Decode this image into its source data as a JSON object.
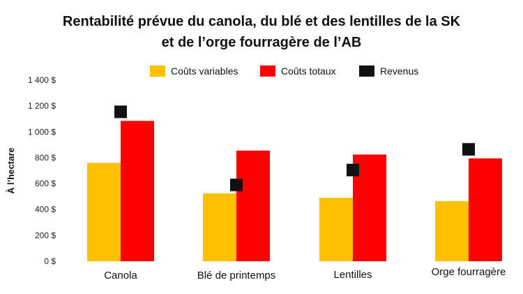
{
  "chart_data": {
    "type": "bar",
    "title_line1": "Rentabilité prévue du canola, du blé et des lentilles de la SK",
    "title_line2": "et de l’orge fourragère de l’AB",
    "ylabel": "À l’hectare",
    "ylim": [
      0,
      1400
    ],
    "yticks": [
      0,
      200,
      400,
      600,
      800,
      1000,
      1200,
      1400
    ],
    "ytick_labels": [
      "0 $",
      "200 $",
      "400 $",
      "600 $",
      "800 $",
      "1 000 $",
      "1 200 $",
      "1 400 $"
    ],
    "categories": [
      "Canola",
      "Blé de printemps",
      "Lentilles",
      "Orge fourragère"
    ],
    "series": [
      {
        "name": "Coûts variables",
        "kind": "bar",
        "color": "#FFC000",
        "values": [
          760,
          525,
          490,
          465
        ]
      },
      {
        "name": "Coûts totaux",
        "kind": "bar",
        "color": "#FF0000",
        "values": [
          1085,
          855,
          825,
          795
        ]
      },
      {
        "name": "Revenus",
        "kind": "marker",
        "color": "#111111",
        "values": [
          1155,
          590,
          705,
          865
        ]
      }
    ],
    "legend_position": "top",
    "grid": false
  }
}
